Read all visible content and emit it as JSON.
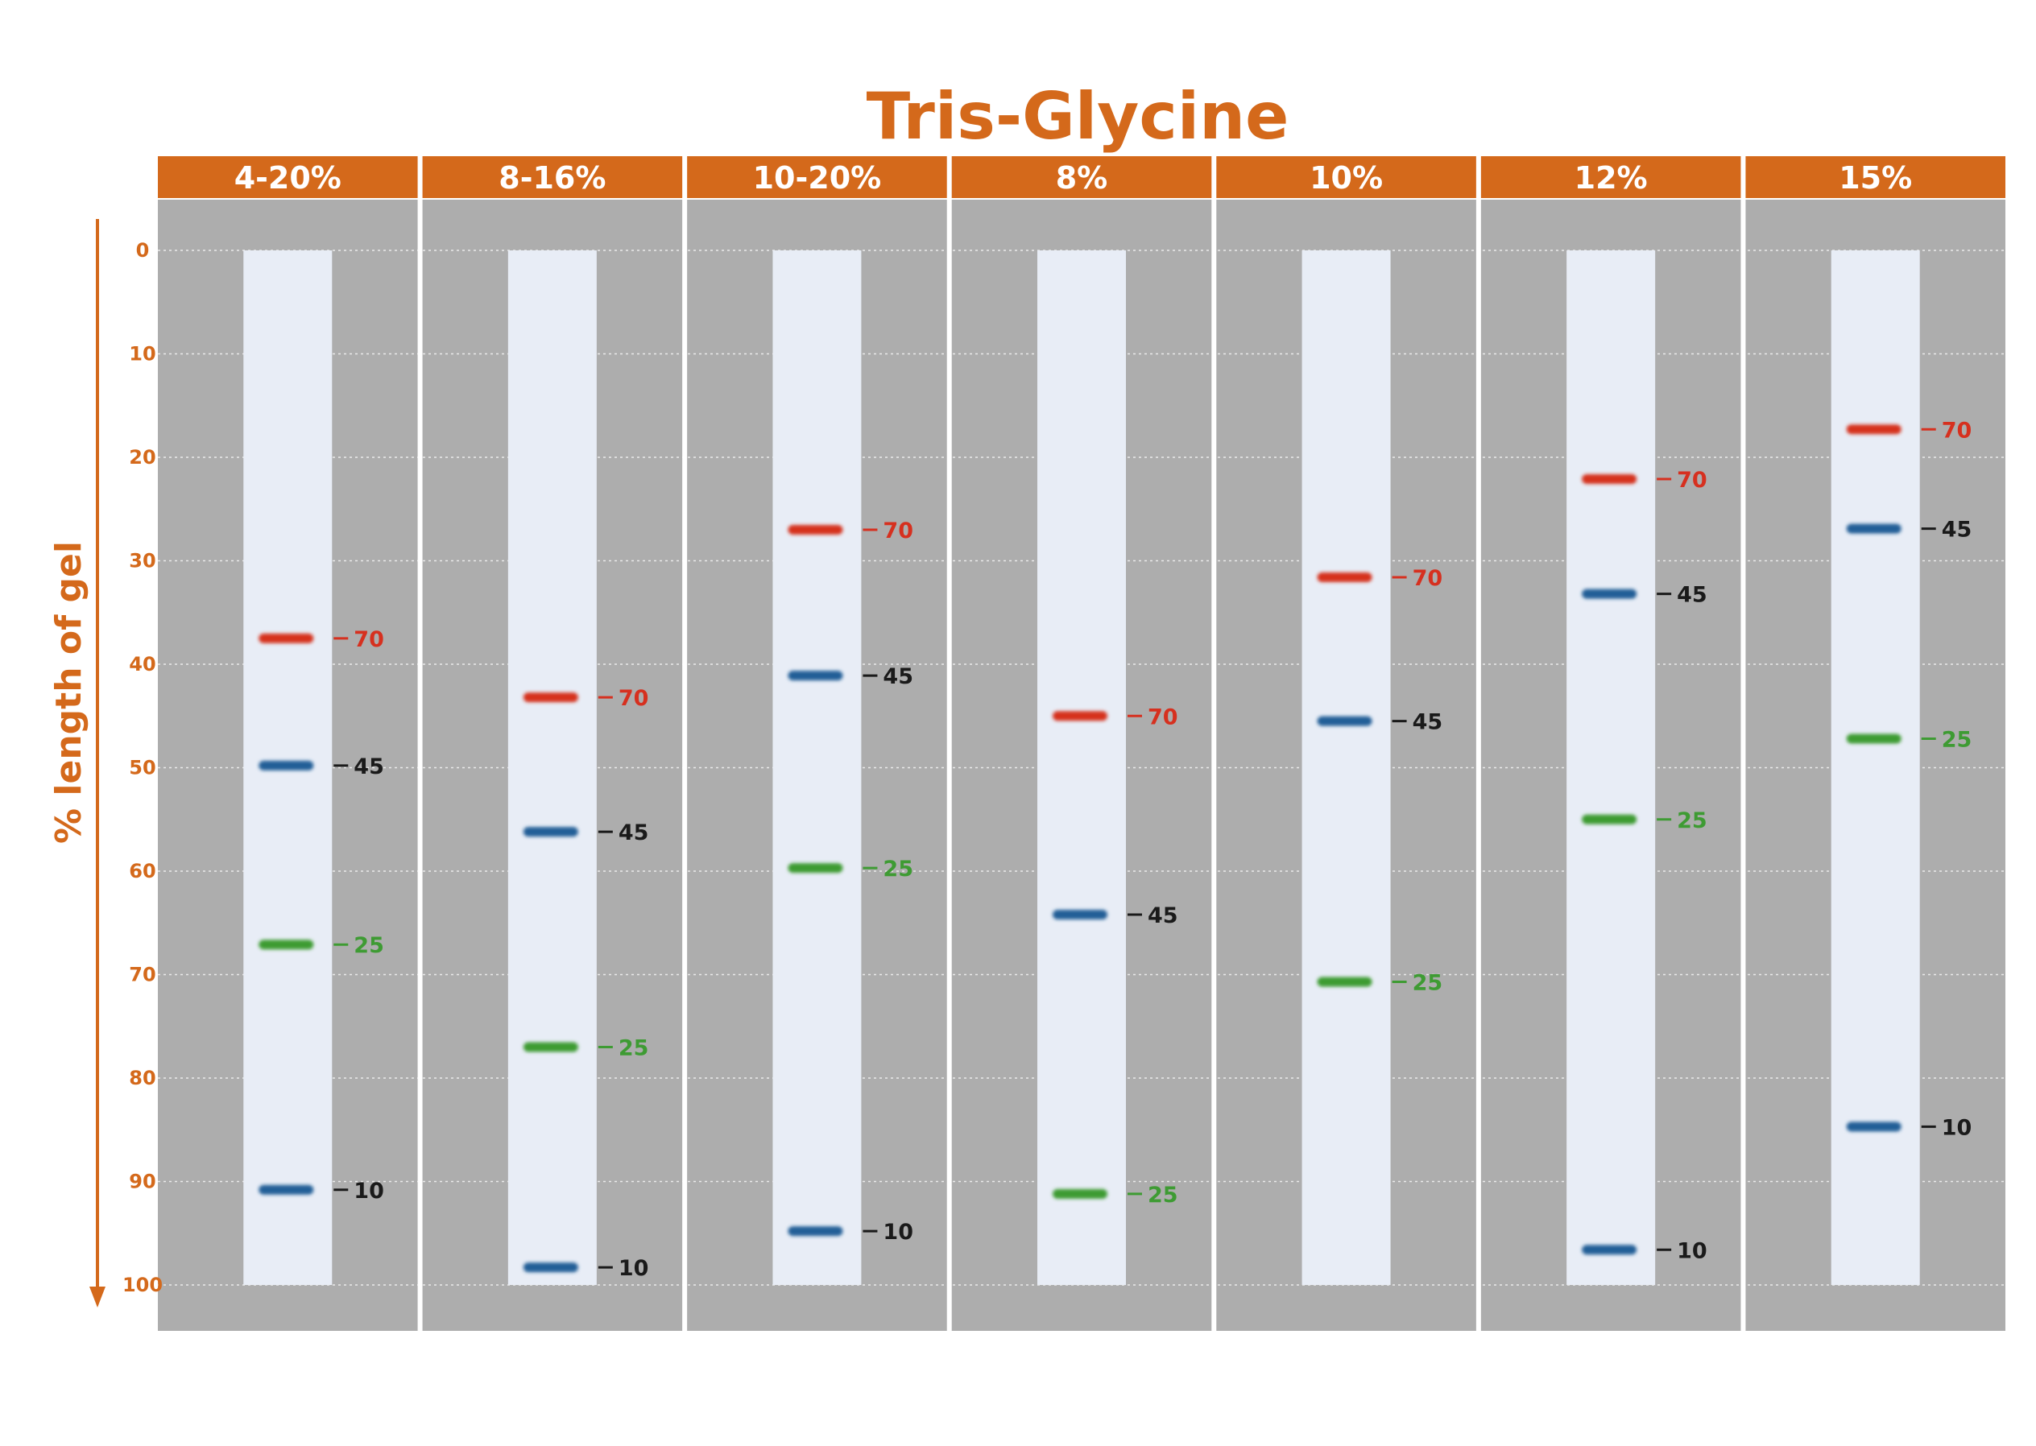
{
  "chart_data": {
    "type": "gel",
    "title": "Tris-Glycine",
    "ylabel": "% length of gel",
    "ylim": [
      0,
      100
    ],
    "yticks": [
      "0",
      "10",
      "20",
      "30",
      "40",
      "50",
      "60",
      "70",
      "80",
      "90",
      "100"
    ],
    "grid": true,
    "lanes": [
      {
        "label": "4-20%",
        "bands": [
          {
            "label": "70",
            "position": 37.5,
            "color": "#d6301f"
          },
          {
            "label": "45",
            "position": 49.8,
            "color": "#245f97"
          },
          {
            "label": "25",
            "position": 67.1,
            "color": "#3e9b33"
          },
          {
            "label": "10",
            "position": 90.8,
            "color": "#245f97"
          }
        ]
      },
      {
        "label": "8-16%",
        "bands": [
          {
            "label": "70",
            "position": 43.2,
            "color": "#d6301f"
          },
          {
            "label": "45",
            "position": 56.2,
            "color": "#245f97"
          },
          {
            "label": "25",
            "position": 77.0,
            "color": "#3e9b33"
          },
          {
            "label": "10",
            "position": 98.3,
            "color": "#245f97"
          }
        ]
      },
      {
        "label": "10-20%",
        "bands": [
          {
            "label": "70",
            "position": 27.0,
            "color": "#d6301f"
          },
          {
            "label": "45",
            "position": 41.1,
            "color": "#245f97"
          },
          {
            "label": "25",
            "position": 59.7,
            "color": "#3e9b33"
          },
          {
            "label": "10",
            "position": 94.8,
            "color": "#245f97"
          }
        ]
      },
      {
        "label": "8%",
        "bands": [
          {
            "label": "70",
            "position": 45.0,
            "color": "#d6301f"
          },
          {
            "label": "45",
            "position": 64.2,
            "color": "#245f97"
          },
          {
            "label": "25",
            "position": 91.2,
            "color": "#3e9b33"
          }
        ]
      },
      {
        "label": "10%",
        "bands": [
          {
            "label": "70",
            "position": 31.6,
            "color": "#d6301f"
          },
          {
            "label": "45",
            "position": 45.5,
            "color": "#245f97"
          },
          {
            "label": "25",
            "position": 70.7,
            "color": "#3e9b33"
          }
        ]
      },
      {
        "label": "12%",
        "bands": [
          {
            "label": "70",
            "position": 22.1,
            "color": "#d6301f"
          },
          {
            "label": "45",
            "position": 33.2,
            "color": "#245f97"
          },
          {
            "label": "25",
            "position": 55.0,
            "color": "#3e9b33"
          },
          {
            "label": "10",
            "position": 96.6,
            "color": "#245f97"
          }
        ]
      },
      {
        "label": "15%",
        "bands": [
          {
            "label": "70",
            "position": 17.3,
            "color": "#d6301f"
          },
          {
            "label": "45",
            "position": 26.9,
            "color": "#245f97"
          },
          {
            "label": "25",
            "position": 47.2,
            "color": "#3e9b33"
          },
          {
            "label": "10",
            "position": 84.7,
            "color": "#245f97"
          }
        ]
      }
    ]
  },
  "colors": {
    "accent": "#d4691b",
    "panel": "#adadad",
    "lane": "#e8edf6",
    "label_70": "#d6301f",
    "label_45": "#1a1a1a",
    "label_25": "#3e9b33",
    "label_10": "#1a1a1a"
  }
}
